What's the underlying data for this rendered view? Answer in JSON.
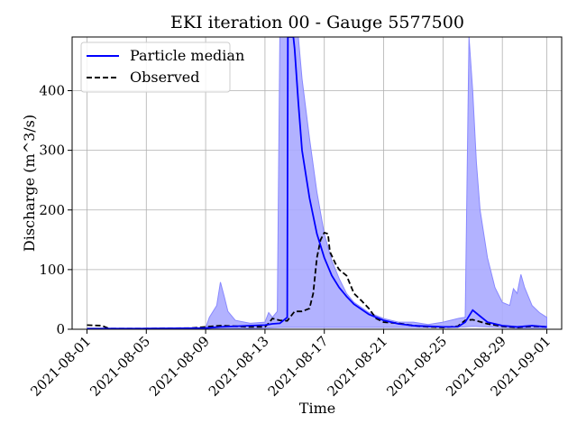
{
  "chart_data": {
    "type": "line",
    "title": "EKI iteration 00 - Gauge 5577500",
    "xlabel": "Time",
    "ylabel": "Discharge (m^3/s)",
    "x_range": [
      "2021-07-31",
      "2021-09-02"
    ],
    "ylim": [
      0,
      490
    ],
    "grid": true,
    "legend_position": "top-left",
    "x_ticks": [
      "2021-08-01",
      "2021-08-05",
      "2021-08-09",
      "2021-08-13",
      "2021-08-17",
      "2021-08-21",
      "2021-08-25",
      "2021-08-29",
      "2021-09-01"
    ],
    "y_ticks": [
      0,
      100,
      200,
      300,
      400
    ],
    "colors": {
      "median": "#0000ff",
      "band_fill": "#aaaaff",
      "band_edge": "#8888ff",
      "observed": "#000000",
      "grid": "#b0b0b0"
    },
    "series": [
      {
        "name": "Particle median",
        "style": "solid",
        "points": [
          [
            "2021-08-01",
            1
          ],
          [
            "2021-08-05",
            1
          ],
          [
            "2021-08-09",
            2
          ],
          [
            "2021-08-10",
            4
          ],
          [
            "2021-08-12",
            6
          ],
          [
            "2021-08-13",
            7
          ],
          [
            "2021-08-13 12:00",
            9
          ],
          [
            "2021-08-14",
            10
          ],
          [
            "2021-08-14 12:00",
            20
          ],
          [
            "2021-08-14 13:00",
            490
          ],
          [
            "2021-08-14 22:00",
            490
          ],
          [
            "2021-08-15",
            470
          ],
          [
            "2021-08-15 06:00",
            380
          ],
          [
            "2021-08-15 12:00",
            300
          ],
          [
            "2021-08-16",
            220
          ],
          [
            "2021-08-16 12:00",
            160
          ],
          [
            "2021-08-17",
            120
          ],
          [
            "2021-08-17 12:00",
            90
          ],
          [
            "2021-08-18",
            70
          ],
          [
            "2021-08-18 12:00",
            55
          ],
          [
            "2021-08-19",
            42
          ],
          [
            "2021-08-20",
            25
          ],
          [
            "2021-08-21",
            15
          ],
          [
            "2021-08-22",
            9
          ],
          [
            "2021-08-23",
            6
          ],
          [
            "2021-08-24",
            5
          ],
          [
            "2021-08-25",
            4
          ],
          [
            "2021-08-26",
            4
          ],
          [
            "2021-08-26 12:00",
            12
          ],
          [
            "2021-08-27",
            32
          ],
          [
            "2021-08-27 12:00",
            22
          ],
          [
            "2021-08-28",
            12
          ],
          [
            "2021-08-29",
            6
          ],
          [
            "2021-08-30",
            4
          ],
          [
            "2021-08-31",
            6
          ],
          [
            "2021-09-01",
            4
          ]
        ]
      },
      {
        "name": "Observed",
        "style": "dashed",
        "points": [
          [
            "2021-08-01",
            7
          ],
          [
            "2021-08-02",
            6
          ],
          [
            "2021-08-02 12:00",
            1
          ],
          [
            "2021-08-05",
            1
          ],
          [
            "2021-08-08",
            2
          ],
          [
            "2021-08-09",
            4
          ],
          [
            "2021-08-10",
            6
          ],
          [
            "2021-08-11",
            5
          ],
          [
            "2021-08-12",
            4
          ],
          [
            "2021-08-13",
            4
          ],
          [
            "2021-08-13 06:00",
            10
          ],
          [
            "2021-08-13 12:00",
            18
          ],
          [
            "2021-08-14",
            15
          ],
          [
            "2021-08-14 12:00",
            14
          ],
          [
            "2021-08-15",
            30
          ],
          [
            "2021-08-15 12:00",
            30
          ],
          [
            "2021-08-16",
            35
          ],
          [
            "2021-08-16 06:00",
            60
          ],
          [
            "2021-08-16 12:00",
            120
          ],
          [
            "2021-08-16 18:00",
            150
          ],
          [
            "2021-08-17",
            162
          ],
          [
            "2021-08-17 06:00",
            160
          ],
          [
            "2021-08-17 09:00",
            130
          ],
          [
            "2021-08-17 18:00",
            110
          ],
          [
            "2021-08-18",
            100
          ],
          [
            "2021-08-18 12:00",
            90
          ],
          [
            "2021-08-19",
            60
          ],
          [
            "2021-08-19 12:00",
            48
          ],
          [
            "2021-08-20",
            35
          ],
          [
            "2021-08-20 12:00",
            18
          ],
          [
            "2021-08-21",
            12
          ],
          [
            "2021-08-22",
            10
          ],
          [
            "2021-08-23",
            6
          ],
          [
            "2021-08-24",
            4
          ],
          [
            "2021-08-25",
            3
          ],
          [
            "2021-08-26",
            5
          ],
          [
            "2021-08-26 12:00",
            15
          ],
          [
            "2021-08-27",
            16
          ],
          [
            "2021-08-28",
            9
          ],
          [
            "2021-08-29",
            5
          ],
          [
            "2021-08-30",
            3
          ],
          [
            "2021-08-31",
            5
          ],
          [
            "2021-09-01",
            4
          ]
        ]
      }
    ],
    "band": {
      "upper": [
        [
          "2021-08-05",
          2
        ],
        [
          "2021-08-09",
          2
        ],
        [
          "2021-08-09 06:00",
          20
        ],
        [
          "2021-08-09 18:00",
          40
        ],
        [
          "2021-08-10",
          79
        ],
        [
          "2021-08-10 06:00",
          55
        ],
        [
          "2021-08-10 12:00",
          30
        ],
        [
          "2021-08-11",
          15
        ],
        [
          "2021-08-12",
          10
        ],
        [
          "2021-08-13",
          12
        ],
        [
          "2021-08-13 06:00",
          28
        ],
        [
          "2021-08-13 12:00",
          20
        ],
        [
          "2021-08-13 20:00",
          30
        ],
        [
          "2021-08-14",
          490
        ],
        [
          "2021-08-15 06:00",
          490
        ],
        [
          "2021-08-15 12:00",
          420
        ],
        [
          "2021-08-16",
          320
        ],
        [
          "2021-08-16 12:00",
          230
        ],
        [
          "2021-08-17",
          160
        ],
        [
          "2021-08-17 12:00",
          115
        ],
        [
          "2021-08-18",
          85
        ],
        [
          "2021-08-18 12:00",
          60
        ],
        [
          "2021-08-19",
          45
        ],
        [
          "2021-08-20",
          28
        ],
        [
          "2021-08-21",
          18
        ],
        [
          "2021-08-22",
          12
        ],
        [
          "2021-08-23",
          12
        ],
        [
          "2021-08-24",
          8
        ],
        [
          "2021-08-25",
          12
        ],
        [
          "2021-08-26",
          18
        ],
        [
          "2021-08-26 12:00",
          20
        ],
        [
          "2021-08-26 18:00",
          490
        ],
        [
          "2021-08-27",
          400
        ],
        [
          "2021-08-27 06:00",
          280
        ],
        [
          "2021-08-27 12:00",
          200
        ],
        [
          "2021-08-28",
          120
        ],
        [
          "2021-08-28 12:00",
          70
        ],
        [
          "2021-08-29",
          45
        ],
        [
          "2021-08-29 12:00",
          40
        ],
        [
          "2021-08-29 18:00",
          68
        ],
        [
          "2021-08-30",
          60
        ],
        [
          "2021-08-30 06:00",
          92
        ],
        [
          "2021-08-30 12:00",
          70
        ],
        [
          "2021-08-31",
          40
        ],
        [
          "2021-08-31 12:00",
          28
        ],
        [
          "2021-09-01",
          20
        ]
      ],
      "lower": [
        [
          "2021-09-01",
          2
        ],
        [
          "2021-08-30",
          2
        ],
        [
          "2021-08-28",
          4
        ],
        [
          "2021-08-27",
          5
        ],
        [
          "2021-08-26 12:00",
          4
        ],
        [
          "2021-08-25",
          3
        ],
        [
          "2021-08-22",
          3
        ],
        [
          "2021-08-19",
          3
        ],
        [
          "2021-08-17",
          3
        ],
        [
          "2021-08-15",
          3
        ],
        [
          "2021-08-14",
          3
        ],
        [
          "2021-08-13",
          2
        ],
        [
          "2021-08-11",
          1
        ],
        [
          "2021-08-09",
          0
        ],
        [
          "2021-08-05",
          0
        ]
      ]
    }
  }
}
